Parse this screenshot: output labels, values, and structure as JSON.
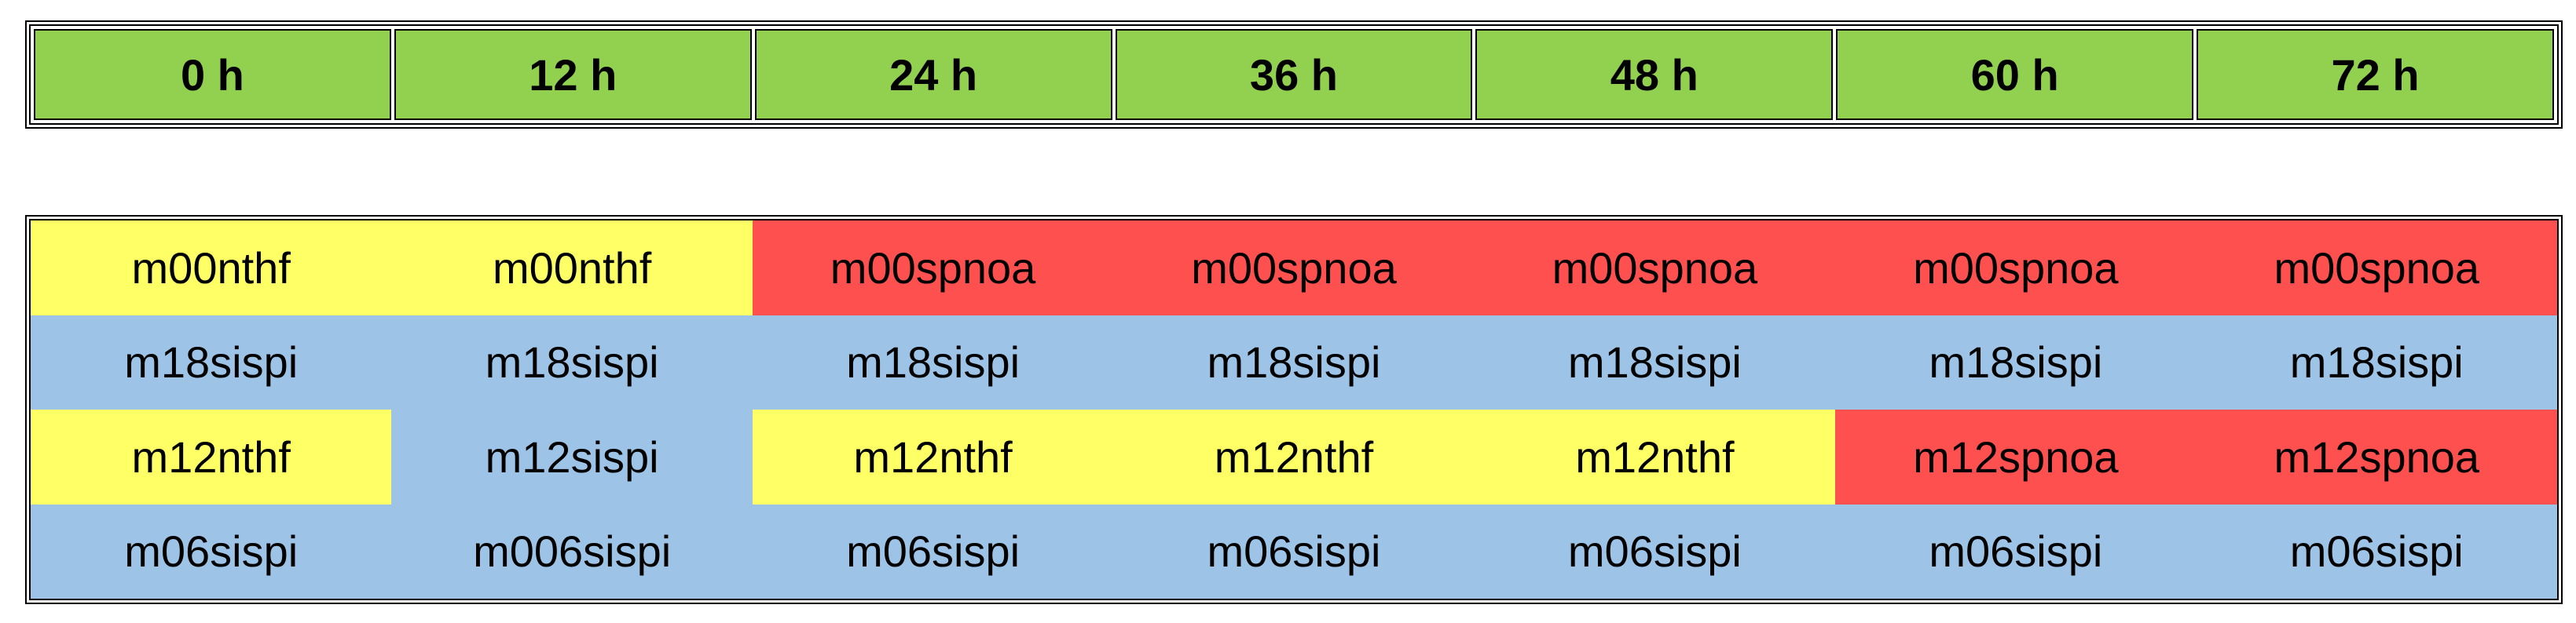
{
  "colors": {
    "header_fill": "#92d050",
    "yellow": "#ffff66",
    "red": "#ff5050",
    "blue": "#9dc3e6"
  },
  "header": {
    "labels": [
      "0 h",
      "12 h",
      "24 h",
      "36 h",
      "48 h",
      "60 h",
      "72 h"
    ]
  },
  "grid": {
    "rows": [
      {
        "cells": [
          {
            "text": "m00nthf",
            "color": "#ffff66"
          },
          {
            "text": "m00nthf",
            "color": "#ffff66"
          },
          {
            "text": "m00spnoa",
            "color": "#ff5050"
          },
          {
            "text": "m00spnoa",
            "color": "#ff5050"
          },
          {
            "text": "m00spnoa",
            "color": "#ff5050"
          },
          {
            "text": "m00spnoa",
            "color": "#ff5050"
          },
          {
            "text": "m00spnoa",
            "color": "#ff5050"
          }
        ]
      },
      {
        "cells": [
          {
            "text": "m18sispi",
            "color": "#9dc3e6"
          },
          {
            "text": "m18sispi",
            "color": "#9dc3e6"
          },
          {
            "text": "m18sispi",
            "color": "#9dc3e6"
          },
          {
            "text": "m18sispi",
            "color": "#9dc3e6"
          },
          {
            "text": "m18sispi",
            "color": "#9dc3e6"
          },
          {
            "text": "m18sispi",
            "color": "#9dc3e6"
          },
          {
            "text": "m18sispi",
            "color": "#9dc3e6"
          }
        ]
      },
      {
        "cells": [
          {
            "text": "m12nthf",
            "color": "#ffff66"
          },
          {
            "text": "m12sispi",
            "color": "#9dc3e6"
          },
          {
            "text": "m12nthf",
            "color": "#ffff66"
          },
          {
            "text": "m12nthf",
            "color": "#ffff66"
          },
          {
            "text": "m12nthf",
            "color": "#ffff66"
          },
          {
            "text": "m12spnoa",
            "color": "#ff5050"
          },
          {
            "text": "m12spnoa",
            "color": "#ff5050"
          }
        ]
      },
      {
        "cells": [
          {
            "text": "m06sispi",
            "color": "#9dc3e6"
          },
          {
            "text": "m006sispi",
            "color": "#9dc3e6"
          },
          {
            "text": "m06sispi",
            "color": "#9dc3e6"
          },
          {
            "text": "m06sispi",
            "color": "#9dc3e6"
          },
          {
            "text": "m06sispi",
            "color": "#9dc3e6"
          },
          {
            "text": "m06sispi",
            "color": "#9dc3e6"
          },
          {
            "text": "m06sispi",
            "color": "#9dc3e6"
          }
        ]
      }
    ]
  }
}
